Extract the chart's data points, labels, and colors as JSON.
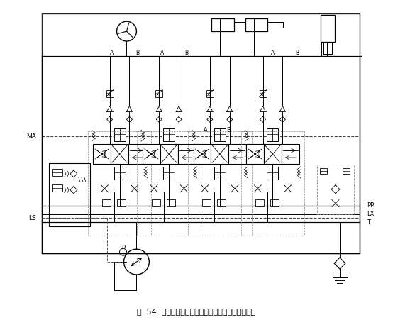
{
  "title": "图  54  某工程机械的比例多路换向阀液压系统原理图",
  "bg_color": "#ffffff",
  "line_color": "#000000",
  "fig_width": 5.54,
  "fig_height": 4.51,
  "dpi": 100,
  "labels": {
    "MA": "MA",
    "LS": "LS",
    "PP": "PP",
    "LX": "LX",
    "T": "T",
    "P": "P"
  }
}
